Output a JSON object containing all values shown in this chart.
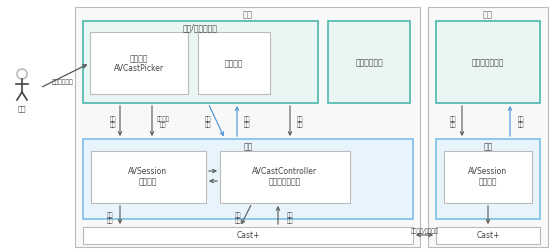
{
  "white": "#ffffff",
  "teal_border": "#4cb8ae",
  "teal_fill": "#eaf6f4",
  "blue_border": "#7bbfe8",
  "blue_fill": "#e8f4fc",
  "gray_border": "#bbbbbb",
  "gray_fill": "#f8f8f8",
  "inner_fill": "#ffffff",
  "text_dark": "#444444",
  "text_mid": "#666666",
  "arrow_dark": "#555555",
  "arrow_blue": "#4a90d9",
  "bende_label": "本端",
  "yuanduan_label": "远端",
  "user_label": "用户",
  "cast_arrow_label": "投播选择设备",
  "music_app_label": "音乐/视频类应用",
  "cast_widget_line1": "投播组件",
  "cast_widget_line2": "AVCastPicker",
  "playback_service_label": "播放服务",
  "system_control_label": "系统播控中心",
  "system_preview_label": "系统预置播放器",
  "system_label": "系统",
  "avsession_line1": "AVSession",
  "avsession_line2": "媒体会话",
  "avcast_controller_line1": "AVCastController",
  "avcast_controller_line2": "投播会话控制器",
  "castplus_label": "Cast+",
  "remote_system_label": "系统",
  "remote_avsession_line1": "AVSession",
  "remote_avsession_line2": "媒体会话",
  "remote_castplus_label": "Cast+",
  "lbl_xuanbo_shebei": "选播\n设备",
  "lbl_jiantin_shebei": "监听设备\n选播",
  "lbl_toubo_kongzhi": "投播\n控制",
  "lbl_jianting_kongzhi": "监听\n控制",
  "lbl_bofang_kongzhi": "播放\n控制",
  "lbl_xuanbo2": "选播\n设备",
  "lbl_kongzhi_mingling": "控制\n命令",
  "lbl_zhuangtai_shangbao": "状态\n上报",
  "lbl_gengxin_zhuangtai": "更新\n状态",
  "lbl_yuanduan_kongzhi": "远端\n控制",
  "cast_feedback_label": "反送控制/状态回调"
}
